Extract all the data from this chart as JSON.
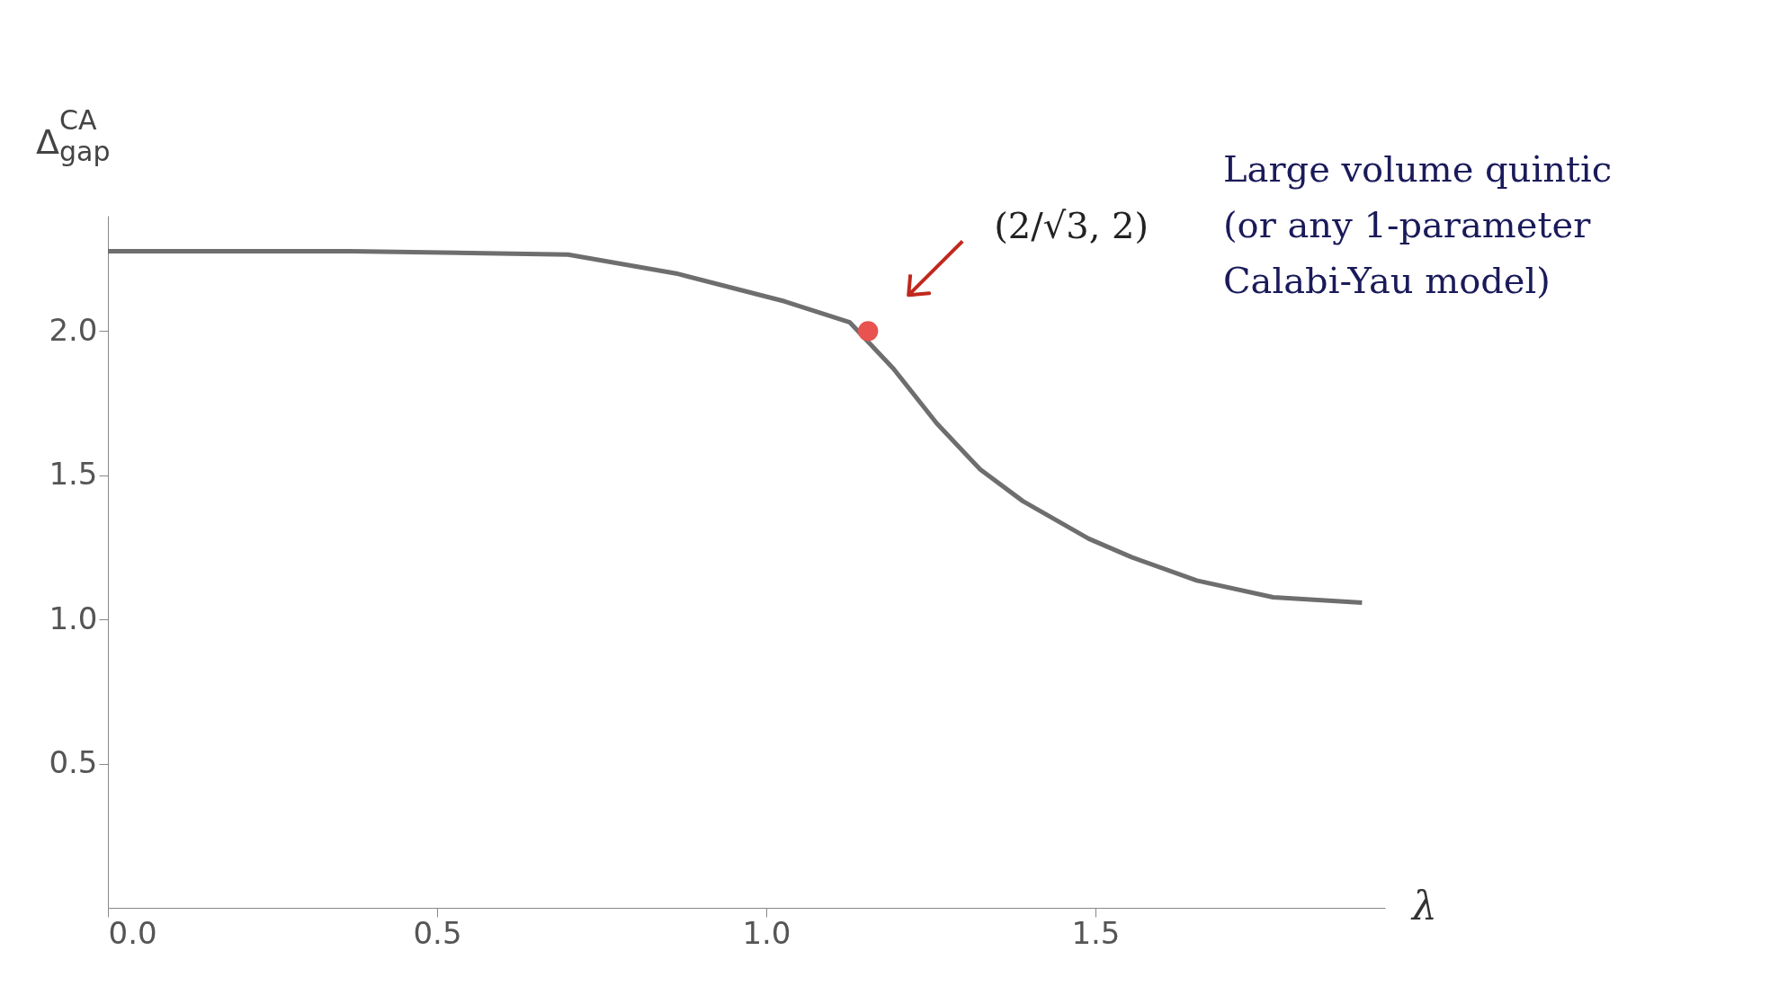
{
  "chart_data": {
    "type": "line",
    "xlabel": "λ",
    "ylabel": "Δ$^{CA}$$_{gap}$",
    "series": [
      {
        "color": "#6e6e6e",
        "x": [
          0,
          0.369,
          0.699,
          0.863,
          1.028,
          1.127,
          1.193,
          1.259,
          1.325,
          1.39,
          1.49,
          1.555,
          1.654,
          1.77,
          1.905
        ],
        "values": [
          2.277,
          2.277,
          2.265,
          2.2,
          2.103,
          2.03,
          1.87,
          1.68,
          1.52,
          1.41,
          1.28,
          1.216,
          1.135,
          1.077,
          1.058
        ]
      },
      {
        "type": "scatter",
        "color": "#e8524f",
        "marker": "circle",
        "x": [
          1.1547
        ],
        "values": [
          2.0
        ]
      }
    ],
    "annotations": [
      "(2/√3, 2)",
      "Large volume quintic (or any 1-parameter Calabi-Yau model)"
    ],
    "xlim": [
      0,
      1.94
    ],
    "ylim": [
      0,
      2.4
    ],
    "xticks": [
      {
        "value": 0,
        "label": "0.0"
      },
      0.5,
      {
        "value": 1,
        "label": "1.0"
      },
      1.5
    ],
    "yticks": [
      0.5,
      {
        "value": 1,
        "label": "1.0"
      },
      1.5,
      {
        "value": 2,
        "label": "2.0"
      }
    ],
    "grid": false,
    "line_style": "solid"
  }
}
